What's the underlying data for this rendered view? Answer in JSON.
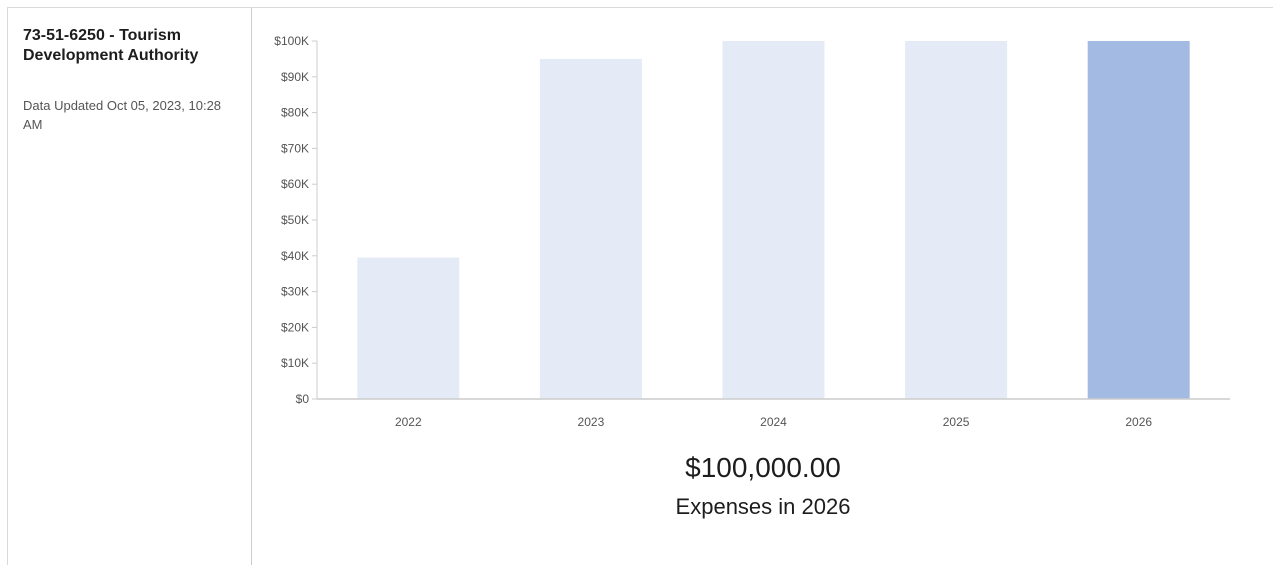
{
  "sidebar": {
    "title": "73-51-6250 - Tourism Development Authority",
    "updated": "Data Updated Oct 05, 2023, 10:28 AM"
  },
  "summary": {
    "value": "$100,000.00",
    "caption": "Expenses in 2026"
  },
  "colors": {
    "bar": "#e4ebf7",
    "bar_highlight": "#a3bbe3",
    "axis": "#cccccc",
    "tick_text": "#555555"
  },
  "chart_data": {
    "type": "bar",
    "categories": [
      "2022",
      "2023",
      "2024",
      "2025",
      "2026"
    ],
    "values": [
      39500,
      95000,
      100000,
      100000,
      100000
    ],
    "highlight_category": "2026",
    "ylim": [
      0,
      100000
    ],
    "yticks": [
      0,
      10000,
      20000,
      30000,
      40000,
      50000,
      60000,
      70000,
      80000,
      90000,
      100000
    ],
    "ytick_labels": [
      "$0",
      "$10K",
      "$20K",
      "$30K",
      "$40K",
      "$50K",
      "$60K",
      "$70K",
      "$80K",
      "$90K",
      "$100K"
    ],
    "grid": false,
    "title": "",
    "xlabel": "",
    "ylabel": ""
  }
}
